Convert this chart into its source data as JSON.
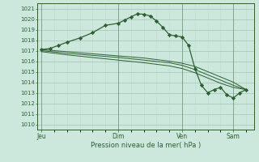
{
  "xlabel": "Pression niveau de la mer( hPa )",
  "background_color": "#cce8dc",
  "grid_color_major": "#aacaba",
  "grid_color_minor": "#bbd8cc",
  "line_color": "#2d6030",
  "ylim": [
    1009.5,
    1021.5
  ],
  "yticks": [
    1010,
    1011,
    1012,
    1013,
    1014,
    1015,
    1016,
    1017,
    1018,
    1019,
    1020,
    1021
  ],
  "x_tick_labels": [
    "Jeu",
    "Dim",
    "Ven",
    "Sam"
  ],
  "x_tick_positions": [
    0.0,
    3.0,
    5.5,
    7.5
  ],
  "xlim": [
    -0.15,
    8.3
  ],
  "series1_x": [
    0.0,
    0.33,
    0.67,
    1.0,
    1.5,
    2.0,
    2.5,
    3.0,
    3.25,
    3.5,
    3.75,
    4.0,
    4.25,
    4.5,
    4.75,
    5.0,
    5.25,
    5.5,
    5.75,
    6.0,
    6.25,
    6.5,
    6.75,
    7.0,
    7.25,
    7.5,
    7.75,
    8.0
  ],
  "series1_y": [
    1017.1,
    1017.2,
    1017.5,
    1017.8,
    1018.2,
    1018.7,
    1019.4,
    1019.6,
    1019.9,
    1020.2,
    1020.5,
    1020.45,
    1020.3,
    1019.8,
    1019.2,
    1018.5,
    1018.4,
    1018.3,
    1017.5,
    1015.3,
    1013.7,
    1013.0,
    1013.3,
    1013.5,
    1012.8,
    1012.5,
    1013.0,
    1013.3
  ],
  "series2_x": [
    0.0,
    1.0,
    2.0,
    3.0,
    4.0,
    5.0,
    5.5,
    6.0,
    6.5,
    7.0,
    7.5,
    8.0
  ],
  "series2_y": [
    1017.1,
    1016.9,
    1016.7,
    1016.5,
    1016.3,
    1016.0,
    1015.8,
    1015.5,
    1015.0,
    1014.5,
    1014.0,
    1013.3
  ],
  "series3_x": [
    0.0,
    1.0,
    2.0,
    3.0,
    4.0,
    5.0,
    5.5,
    6.0,
    6.5,
    7.0,
    7.5,
    8.0
  ],
  "series3_y": [
    1017.0,
    1016.75,
    1016.55,
    1016.35,
    1016.1,
    1015.85,
    1015.6,
    1015.2,
    1014.7,
    1014.2,
    1013.7,
    1013.3
  ],
  "series4_x": [
    0.0,
    1.0,
    2.0,
    3.0,
    4.0,
    5.0,
    5.5,
    6.0,
    6.5,
    7.0,
    7.5,
    8.0
  ],
  "series4_y": [
    1016.9,
    1016.6,
    1016.35,
    1016.1,
    1015.85,
    1015.55,
    1015.3,
    1014.9,
    1014.4,
    1013.9,
    1013.5,
    1013.3
  ]
}
